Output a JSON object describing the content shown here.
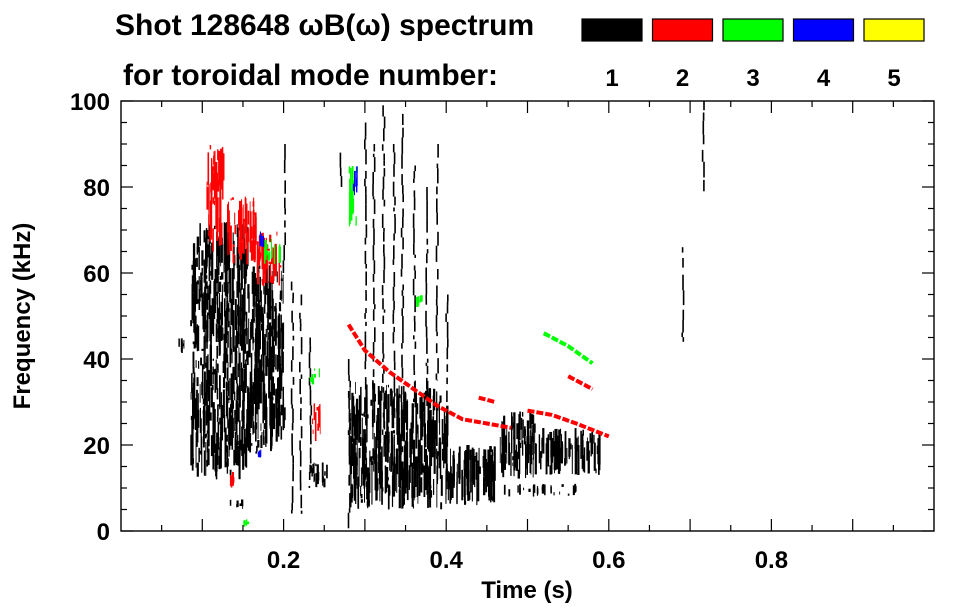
{
  "header": {
    "line1": "Shot 128648 ωB(ω) spectrum",
    "line2": "for toroidal mode number:"
  },
  "legend": [
    {
      "label": "1",
      "color": "#000000"
    },
    {
      "label": "2",
      "color": "#ff0000"
    },
    {
      "label": "3",
      "color": "#00ff00"
    },
    {
      "label": "4",
      "color": "#0000ff"
    },
    {
      "label": "5",
      "color": "#ffff00"
    }
  ],
  "chart_data": {
    "type": "heatmap",
    "title": "Shot 128648 ωB(ω) spectrum",
    "xlabel": "Time (s)",
    "ylabel": "Frequency (kHz)",
    "xlim": [
      0.0,
      1.0
    ],
    "ylim": [
      0,
      100
    ],
    "x_ticks": [
      {
        "value": 0.2,
        "label": "0.2"
      },
      {
        "value": 0.4,
        "label": "0.4"
      },
      {
        "value": 0.6,
        "label": "0.6"
      },
      {
        "value": 0.8,
        "label": "0.8"
      }
    ],
    "y_ticks": [
      {
        "value": 0,
        "label": "0"
      },
      {
        "value": 20,
        "label": "20"
      },
      {
        "value": 40,
        "label": "40"
      },
      {
        "value": 60,
        "label": "60"
      },
      {
        "value": 80,
        "label": "80"
      },
      {
        "value": 100,
        "label": "100"
      }
    ],
    "grid": false,
    "legend_position": "top-right",
    "series": [
      {
        "mode": 1,
        "color": "#000000",
        "blobs": [
          {
            "t": [
              0.085,
              0.155
            ],
            "f": [
              12,
              72
            ]
          },
          {
            "t": [
              0.155,
              0.2
            ],
            "f": [
              18,
              62
            ]
          },
          {
            "t": [
              0.23,
              0.255
            ],
            "f": [
              10,
              16
            ]
          },
          {
            "t": [
              0.28,
              0.4
            ],
            "f": [
              5,
              35
            ]
          },
          {
            "t": [
              0.4,
              0.46
            ],
            "f": [
              6,
              20
            ]
          },
          {
            "t": [
              0.465,
              0.51
            ],
            "f": [
              12,
              28
            ]
          },
          {
            "t": [
              0.51,
              0.59
            ],
            "f": [
              13,
              24
            ]
          },
          {
            "t": [
              0.47,
              0.56
            ],
            "f": [
              8,
              11
            ]
          },
          {
            "t": [
              0.13,
              0.15
            ],
            "f": [
              5,
              8
            ]
          },
          {
            "t": [
              0.07,
              0.09
            ],
            "f": [
              41,
              45
            ]
          }
        ],
        "streaks": [
          {
            "t": 0.105,
            "f": [
              15,
              70
            ]
          },
          {
            "t": 0.118,
            "f": [
              18,
              68
            ]
          },
          {
            "t": 0.13,
            "f": [
              15,
              70
            ]
          },
          {
            "t": 0.142,
            "f": [
              20,
              66
            ]
          },
          {
            "t": 0.165,
            "f": [
              18,
              60
            ]
          },
          {
            "t": 0.175,
            "f": [
              20,
              58
            ]
          },
          {
            "t": 0.185,
            "f": [
              18,
              56
            ]
          },
          {
            "t": 0.195,
            "f": [
              20,
              55
            ]
          },
          {
            "t": 0.2,
            "f": [
              60,
              90
            ]
          },
          {
            "t": 0.21,
            "f": [
              4,
              58
            ]
          },
          {
            "t": 0.22,
            "f": [
              4,
              55
            ]
          },
          {
            "t": 0.232,
            "f": [
              10,
              45
            ]
          },
          {
            "t": 0.28,
            "f": [
              0,
              40
            ]
          },
          {
            "t": 0.3,
            "f": [
              25,
              95
            ]
          },
          {
            "t": 0.31,
            "f": [
              30,
              90
            ]
          },
          {
            "t": 0.322,
            "f": [
              20,
              99
            ]
          },
          {
            "t": 0.335,
            "f": [
              25,
              90
            ]
          },
          {
            "t": 0.345,
            "f": [
              30,
              97
            ]
          },
          {
            "t": 0.36,
            "f": [
              30,
              85
            ]
          },
          {
            "t": 0.375,
            "f": [
              30,
              80
            ]
          },
          {
            "t": 0.388,
            "f": [
              35,
              90
            ]
          },
          {
            "t": 0.4,
            "f": [
              30,
              55
            ]
          },
          {
            "t": 0.715,
            "f": [
              79,
              100
            ]
          },
          {
            "t": 0.69,
            "f": [
              44,
              66
            ]
          },
          {
            "t": 0.27,
            "f": [
              80,
              88
            ]
          }
        ]
      },
      {
        "mode": 2,
        "color": "#ff0000",
        "curves": [
          {
            "points": [
              [
                0.28,
                48
              ],
              [
                0.3,
                42
              ],
              [
                0.33,
                37
              ],
              [
                0.36,
                33
              ],
              [
                0.39,
                29
              ],
              [
                0.42,
                26
              ],
              [
                0.45,
                25
              ],
              [
                0.48,
                24
              ]
            ]
          },
          {
            "points": [
              [
                0.44,
                31
              ],
              [
                0.46,
                30
              ]
            ]
          },
          {
            "points": [
              [
                0.5,
                28
              ],
              [
                0.53,
                27
              ],
              [
                0.56,
                25
              ],
              [
                0.6,
                22
              ]
            ]
          },
          {
            "points": [
              [
                0.55,
                36
              ],
              [
                0.58,
                33
              ]
            ]
          }
        ],
        "blobs": [
          {
            "t": [
              0.105,
              0.125
            ],
            "f": [
              65,
              90
            ]
          },
          {
            "t": [
              0.13,
              0.165
            ],
            "f": [
              62,
              78
            ]
          },
          {
            "t": [
              0.165,
              0.195
            ],
            "f": [
              57,
              70
            ]
          },
          {
            "t": [
              0.13,
              0.14
            ],
            "f": [
              10,
              14
            ]
          },
          {
            "t": [
              0.235,
              0.245
            ],
            "f": [
              20,
              30
            ]
          }
        ]
      },
      {
        "mode": 3,
        "color": "#00ff00",
        "curves": [
          {
            "points": [
              [
                0.52,
                46
              ],
              [
                0.55,
                43
              ],
              [
                0.58,
                39
              ]
            ]
          }
        ],
        "blobs": [
          {
            "t": [
              0.175,
              0.195
            ],
            "f": [
              62,
              68
            ]
          },
          {
            "t": [
              0.23,
              0.245
            ],
            "f": [
              34,
              38
            ]
          },
          {
            "t": [
              0.28,
              0.29
            ],
            "f": [
              70,
              85
            ]
          },
          {
            "t": [
              0.15,
              0.155
            ],
            "f": [
              1,
              3
            ]
          },
          {
            "t": [
              0.36,
              0.37
            ],
            "f": [
              52,
              55
            ]
          }
        ]
      },
      {
        "mode": 4,
        "color": "#0000ff",
        "blobs": [
          {
            "t": [
              0.285,
              0.29
            ],
            "f": [
              78,
              85
            ]
          },
          {
            "t": [
              0.17,
              0.175
            ],
            "f": [
              66,
              70
            ]
          },
          {
            "t": [
              0.168,
              0.172
            ],
            "f": [
              17,
              19
            ]
          }
        ]
      },
      {
        "mode": 5,
        "color": "#ffff00",
        "blobs": []
      }
    ]
  }
}
